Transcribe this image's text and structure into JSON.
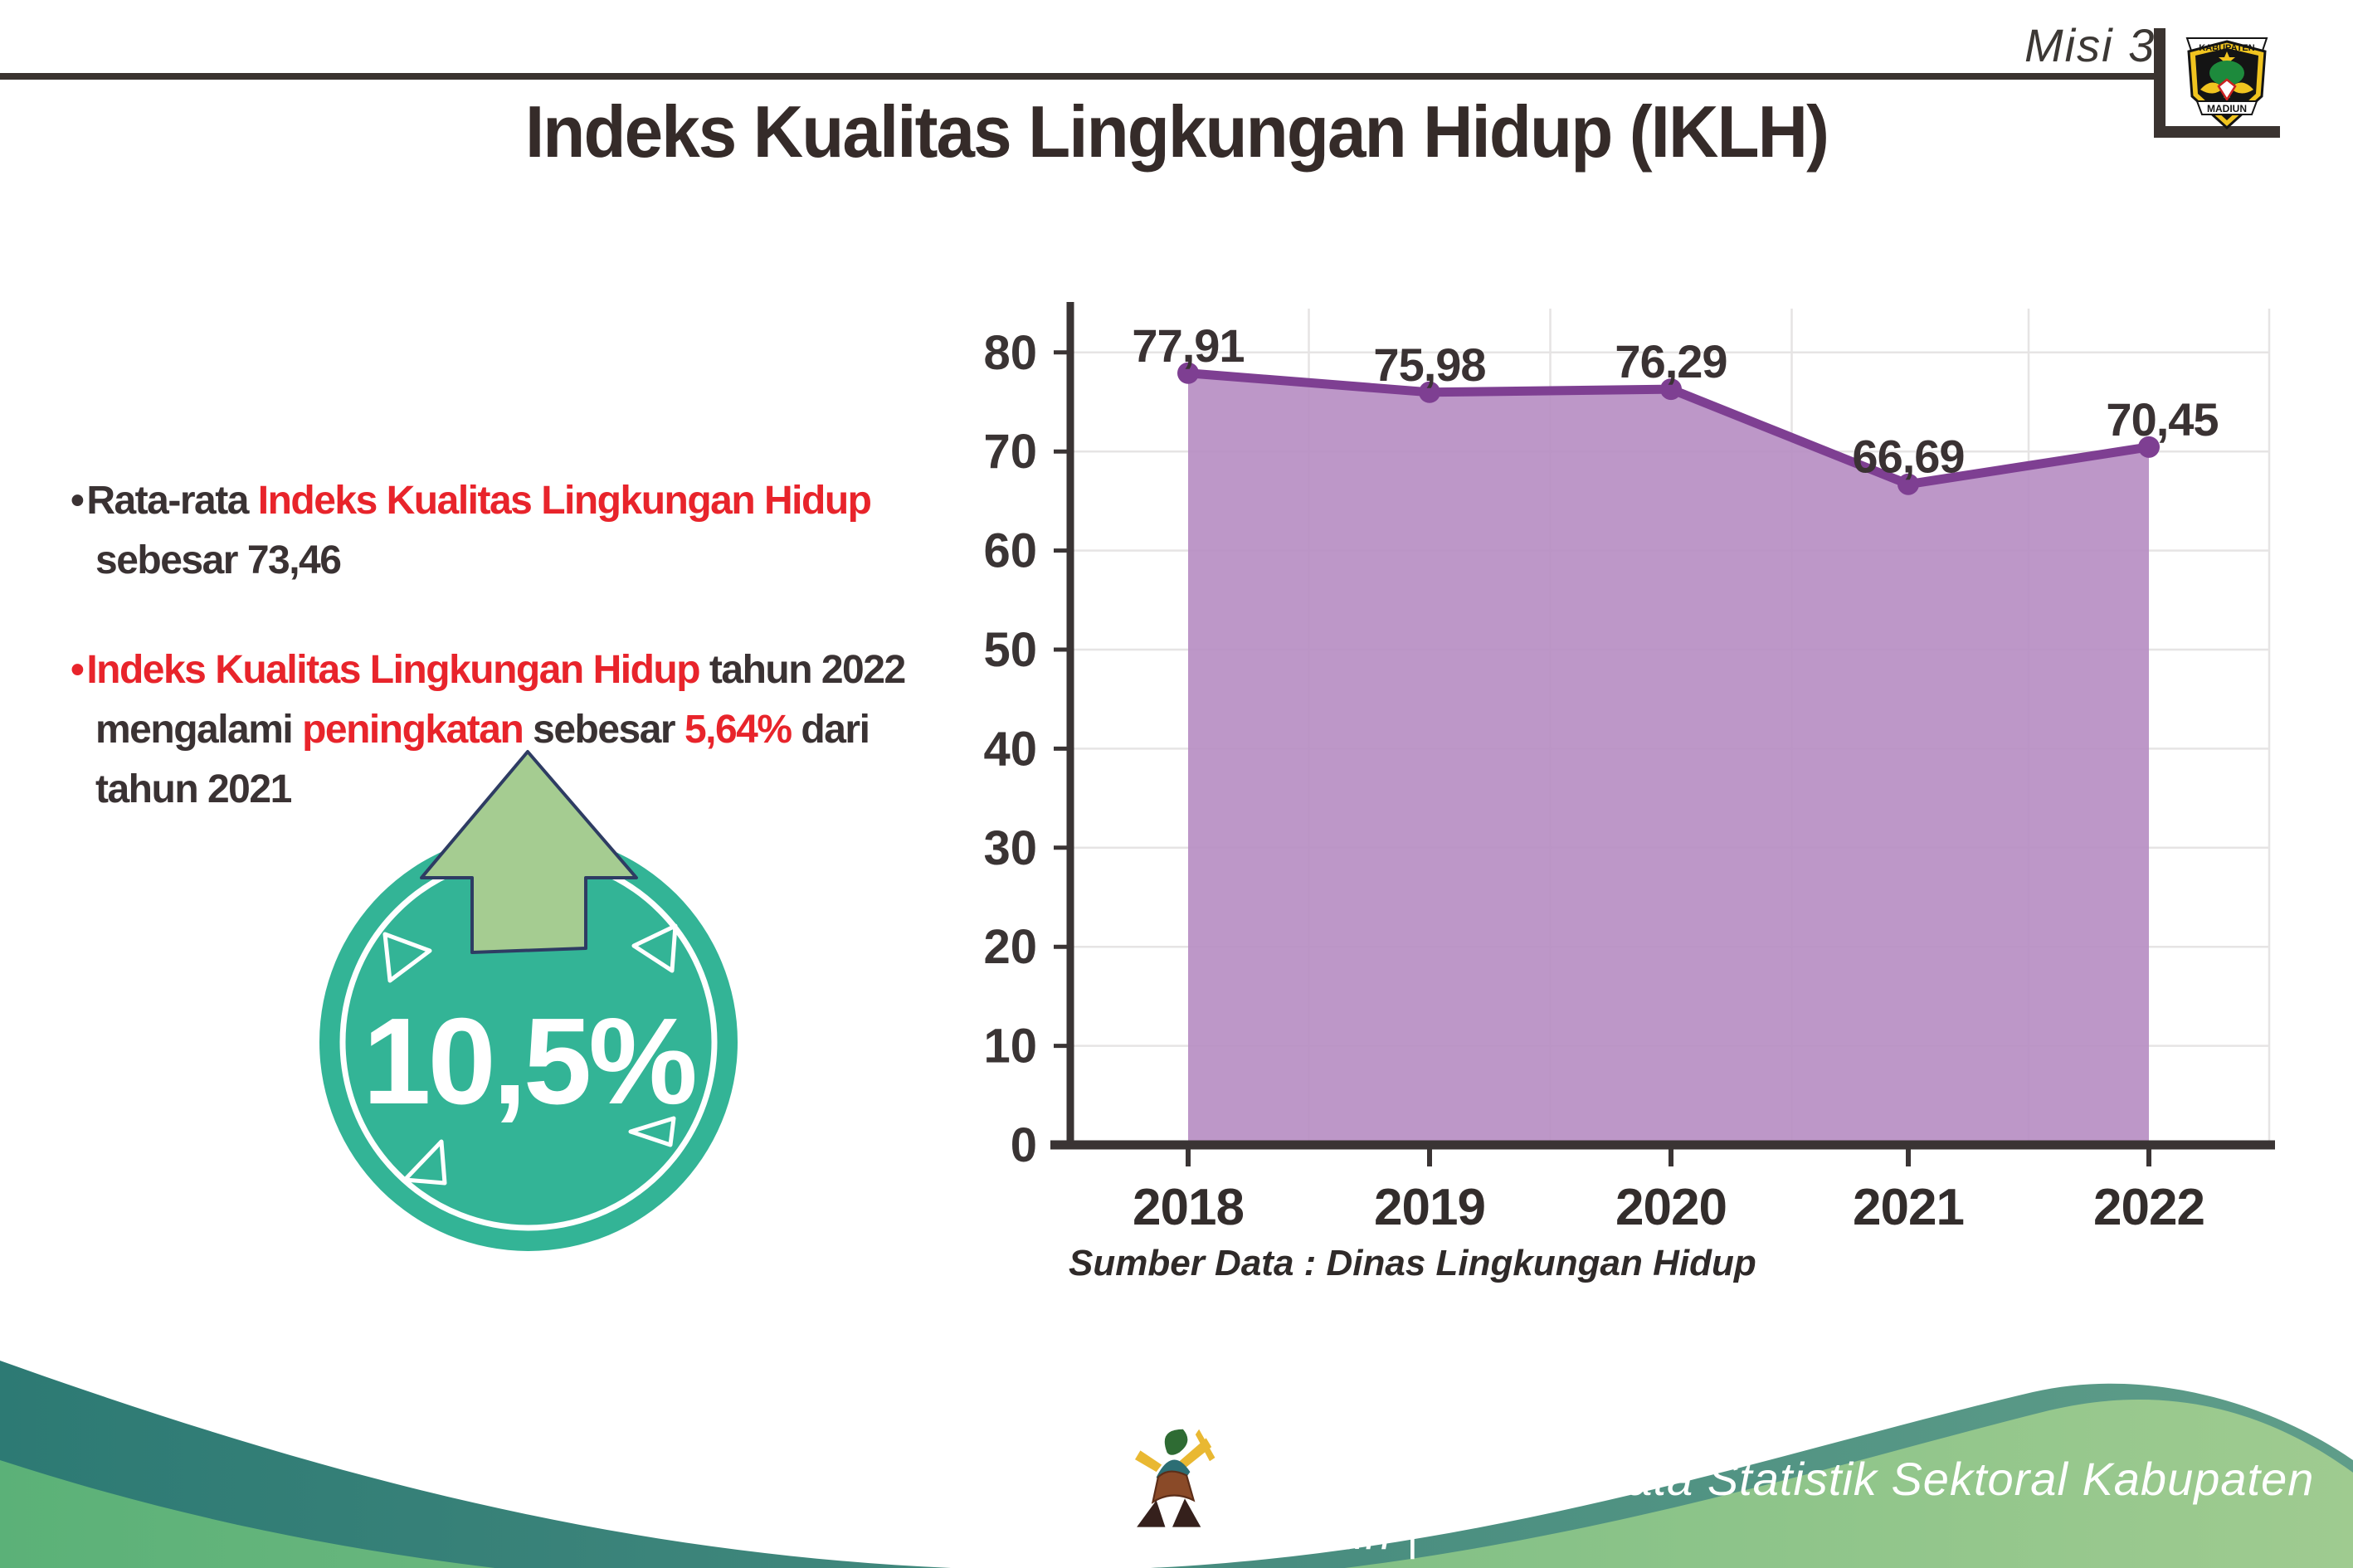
{
  "header": {
    "misi_label": "Misi 3",
    "title": "Indeks Kualitas Lingkungan Hidup (IKLH)",
    "logo_top": "KABUPATEN",
    "logo_bottom": "MADIUN"
  },
  "bullets": [
    {
      "runs": [
        {
          "t": "Rata-rata ",
          "c": "dark"
        },
        {
          "t": "Indeks Kualitas Lingkungan Hidup",
          "c": "red"
        },
        {
          "br": true
        },
        {
          "t": "sebesar 73,46",
          "c": "dark"
        }
      ]
    },
    {
      "runs": [
        {
          "t": "Indeks Kualitas Lingkungan Hidup",
          "c": "red"
        },
        {
          "t": " tahun 2022",
          "c": "dark"
        },
        {
          "br": true
        },
        {
          "t": "mengalami ",
          "c": "dark"
        },
        {
          "t": "peningkatan",
          "c": "red"
        },
        {
          "t": " sebesar ",
          "c": "dark"
        },
        {
          "t": "5,64%",
          "c": "red"
        },
        {
          "t": " dari",
          "c": "dark"
        },
        {
          "br": true
        },
        {
          "t": "tahun 2021",
          "c": "dark"
        }
      ]
    }
  ],
  "badge": {
    "value": "10,5%"
  },
  "chart_data": {
    "type": "area",
    "categories": [
      "2018",
      "2019",
      "2020",
      "2021",
      "2022"
    ],
    "values": [
      77.91,
      75.98,
      76.29,
      66.69,
      70.45
    ],
    "value_labels": [
      "77,91",
      "75,98",
      "76,29",
      "66,69",
      "70,45"
    ],
    "title": "Indeks Kualitas Lingkungan Hidup (IKLH)",
    "xlabel": "",
    "ylabel": "",
    "ylim": [
      0,
      85
    ],
    "yticks": [
      0,
      10,
      20,
      30,
      40,
      50,
      60,
      70,
      80
    ],
    "grid": true,
    "legend": false,
    "source_note": "Sumber Data : Dinas Lingkungan Hidup"
  },
  "footer": {
    "credit": "Media Infografis Data Statistik Sektoral Kabupaten Madiun |"
  },
  "colors": {
    "red": "#e8242b",
    "text_dark": "#3a3233",
    "title_dark": "#352b29",
    "area_fill": "#b78ec3",
    "line_purple": "#7e3f92",
    "axis": "#3a3434",
    "grid": "#e6e4e4",
    "badge_teal": "#33b496",
    "arrow_green": "#a5cc91",
    "arrow_outline": "#2e3c63",
    "footer_teal_dark": "#2d7a74",
    "footer_teal_light": "#5f9d89",
    "footer_green_dark": "#5bb178",
    "footer_green_light": "#9fcb90"
  }
}
